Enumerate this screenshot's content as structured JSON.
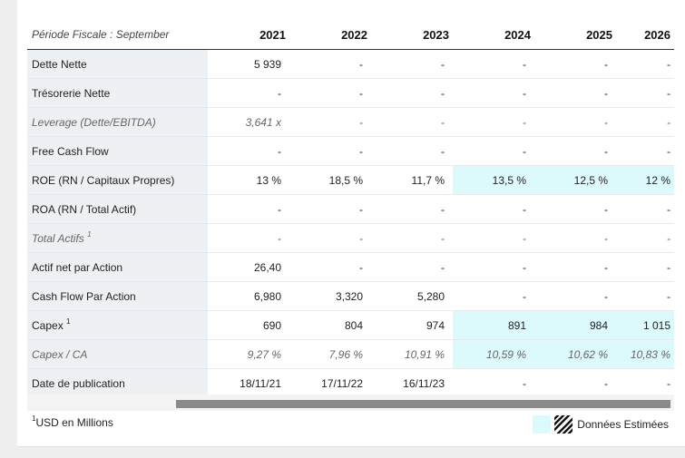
{
  "table": {
    "period_label": "Période Fiscale : September",
    "years": [
      "2021",
      "2022",
      "2023",
      "2024",
      "2025",
      "2026"
    ],
    "rows": [
      {
        "label": "Dette Nette",
        "values": [
          "5 939",
          "-",
          "-",
          "-",
          "-",
          "-"
        ]
      },
      {
        "label": "Trésorerie Nette",
        "values": [
          "-",
          "-",
          "-",
          "-",
          "-",
          "-"
        ]
      },
      {
        "label": "Leverage (Dette/EBITDA)",
        "values": [
          "3,641 x",
          "-",
          "-",
          "-",
          "-",
          "-"
        ]
      },
      {
        "label": "Free Cash Flow",
        "values": [
          "-",
          "-",
          "-",
          "-",
          "-",
          "-"
        ]
      },
      {
        "label": "ROE (RN / Capitaux Propres)",
        "values": [
          "13 %",
          "18,5 %",
          "11,7 %",
          "13,5 %",
          "12,5 %",
          "12 %"
        ]
      },
      {
        "label": "ROA (RN / Total Actif)",
        "values": [
          "-",
          "-",
          "-",
          "-",
          "-",
          "-"
        ]
      },
      {
        "label": "Total Actifs",
        "sup": "1",
        "values": [
          "-",
          "-",
          "-",
          "-",
          "-",
          "-"
        ]
      },
      {
        "label": "Actif net par Action",
        "values": [
          "26,40",
          "-",
          "-",
          "-",
          "-",
          "-"
        ]
      },
      {
        "label": "Cash Flow Par Action",
        "values": [
          "6,980",
          "3,320",
          "5,280",
          "-",
          "-",
          "-"
        ]
      },
      {
        "label": "Capex",
        "sup": "1",
        "values": [
          "690",
          "804",
          "974",
          "891",
          "984",
          "1 015"
        ]
      },
      {
        "label": "Capex / CA",
        "values": [
          "9,27 %",
          "7,96 %",
          "10,91 %",
          "10,59 %",
          "10,62 %",
          "10,83 %"
        ]
      },
      {
        "label": "Date de publication",
        "values": [
          "18/11/21",
          "17/11/22",
          "16/11/23",
          "-",
          "-",
          "-"
        ]
      }
    ]
  },
  "footer": {
    "note_sup": "1",
    "note": "USD en Millions",
    "legend_label": "Données Estimées"
  },
  "colors": {
    "estimate_highlight": "#dcf9fb",
    "label_column": "#eef1f4",
    "scrollbar": "#8a8a8a"
  }
}
